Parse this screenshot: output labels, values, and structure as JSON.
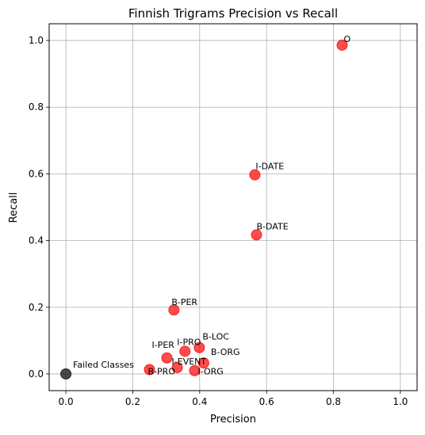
{
  "chart_data": {
    "type": "scatter",
    "title": "Finnish Trigrams Precision vs Recall",
    "xlabel": "Precision",
    "ylabel": "Recall",
    "xlim": [
      -0.05,
      1.05
    ],
    "ylim": [
      -0.05,
      1.05
    ],
    "xticks": [
      "0.0",
      "0.2",
      "0.4",
      "0.6",
      "0.8",
      "1.0"
    ],
    "yticks": [
      "0.0",
      "0.2",
      "0.4",
      "0.6",
      "0.8",
      "1.0"
    ],
    "grid": true,
    "colors": {
      "class_point": "#ff0000",
      "failed_point": "#000000",
      "grid": "#b0b0b0"
    },
    "points": [
      {
        "label": "O",
        "x": 0.826,
        "y": 0.986,
        "group": "class"
      },
      {
        "label": "I-DATE",
        "x": 0.565,
        "y": 0.597,
        "group": "class"
      },
      {
        "label": "B-DATE",
        "x": 0.57,
        "y": 0.417,
        "group": "class"
      },
      {
        "label": "B-PER",
        "x": 0.323,
        "y": 0.192,
        "group": "class"
      },
      {
        "label": "B-LOC",
        "x": 0.399,
        "y": 0.079,
        "group": "class"
      },
      {
        "label": "I-PRO",
        "x": 0.356,
        "y": 0.068,
        "group": "class"
      },
      {
        "label": "I-PER",
        "x": 0.302,
        "y": 0.048,
        "group": "class"
      },
      {
        "label": "B-ORG",
        "x": 0.412,
        "y": 0.033,
        "group": "class"
      },
      {
        "label": "I-EVENT",
        "x": 0.333,
        "y": 0.019,
        "group": "class"
      },
      {
        "label": "B-PRO",
        "x": 0.25,
        "y": 0.013,
        "group": "class"
      },
      {
        "label": "I-ORG",
        "x": 0.385,
        "y": 0.01,
        "group": "class"
      },
      {
        "label": "Failed Classes",
        "x": 0.0,
        "y": 0.0,
        "group": "failed"
      }
    ]
  }
}
